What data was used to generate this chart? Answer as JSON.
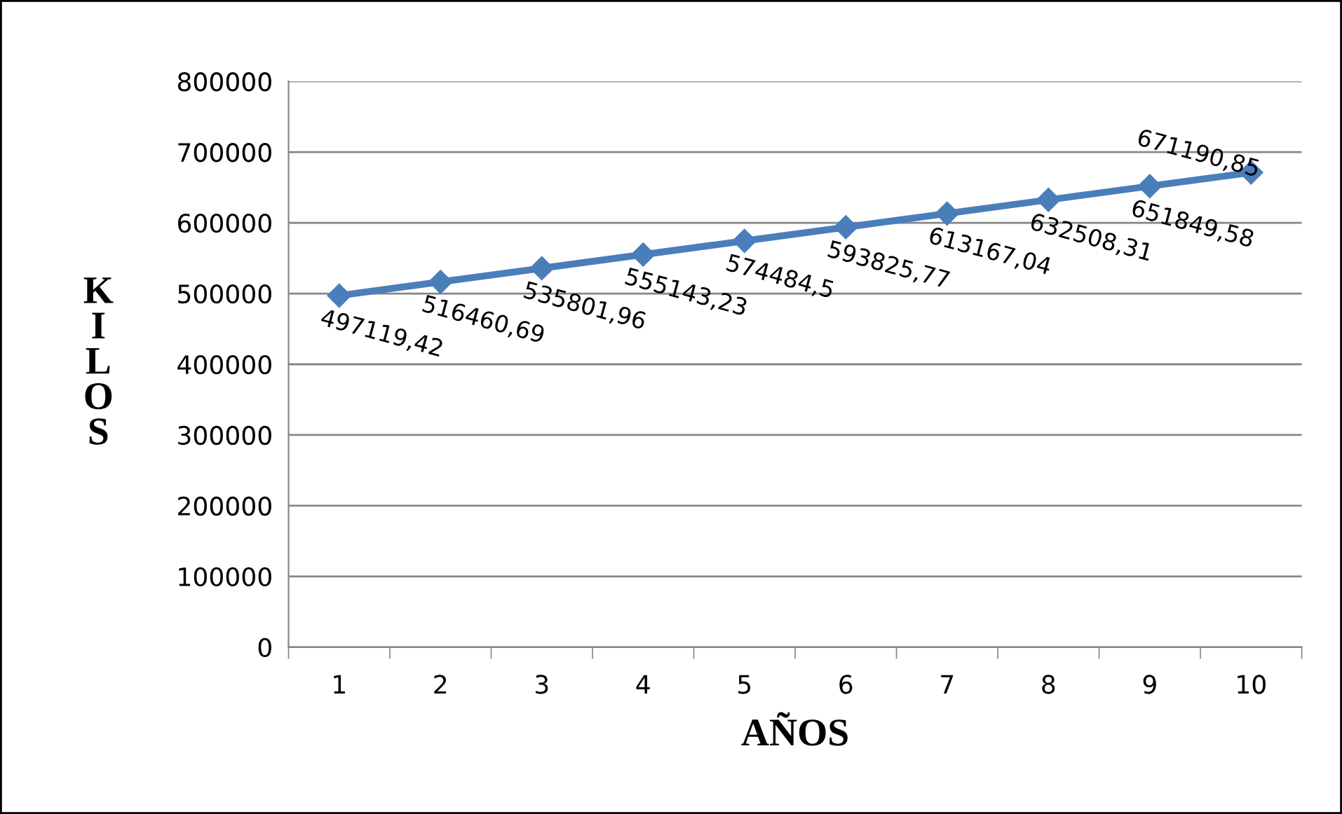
{
  "chart_data": {
    "type": "line",
    "xlabel": "AÑOS",
    "ylabel": "KILOS",
    "categories": [
      "1",
      "2",
      "3",
      "4",
      "5",
      "6",
      "7",
      "8",
      "9",
      "10"
    ],
    "series": [
      {
        "color": "#4a7ebb",
        "values": [
          497119.42,
          516460.69,
          535801.96,
          555143.23,
          574484.5,
          593825.77,
          613167.04,
          632508.31,
          651849.58,
          671190.85
        ],
        "value_labels": [
          "497119,42",
          "516460,69",
          "535801,96",
          "555143,23",
          "574484,5",
          "593825,77",
          "613167,04",
          "632508,31",
          "651849,58",
          "671190,85"
        ]
      }
    ],
    "ylim": [
      0,
      800000
    ],
    "yticks": [
      0,
      100000,
      200000,
      300000,
      400000,
      500000,
      600000,
      700000,
      800000
    ],
    "grid": "y",
    "marker": "diamond",
    "line_style": "solid"
  }
}
